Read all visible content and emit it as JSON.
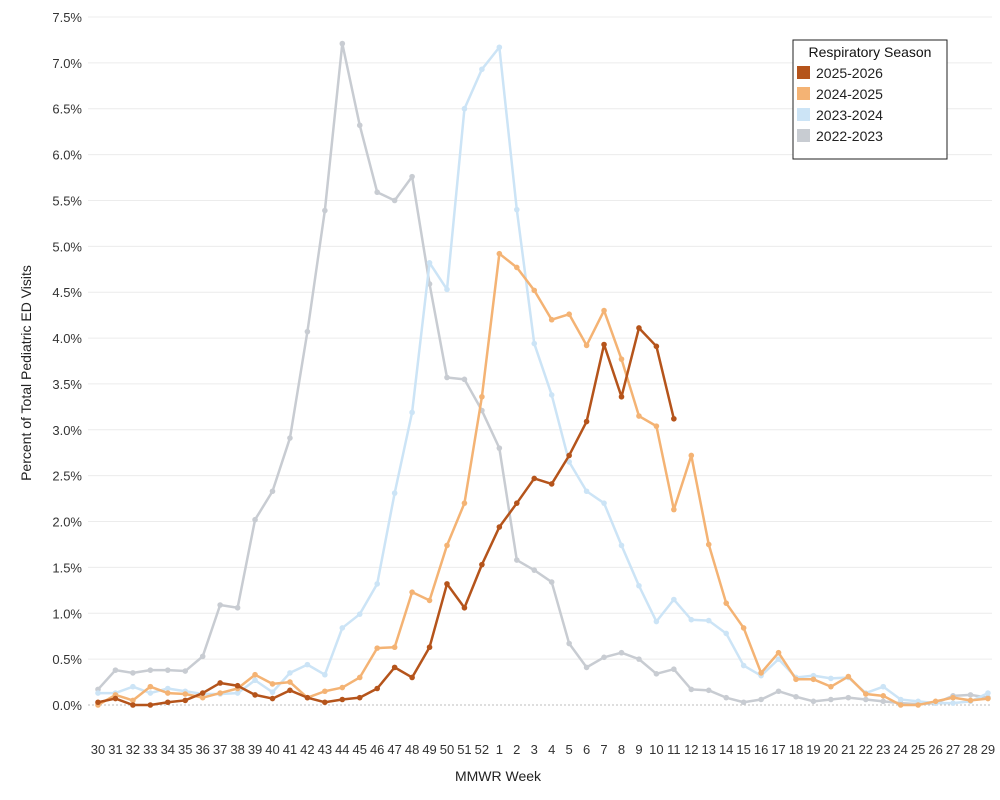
{
  "chart_data": {
    "type": "line",
    "title": "",
    "xlabel": "MMWR Week",
    "ylabel": "Percent of Total Pediatric ED Visits",
    "x": [
      "30",
      "31",
      "32",
      "33",
      "34",
      "35",
      "36",
      "37",
      "38",
      "39",
      "40",
      "41",
      "42",
      "43",
      "44",
      "45",
      "46",
      "47",
      "48",
      "49",
      "50",
      "51",
      "52",
      "1",
      "2",
      "3",
      "4",
      "5",
      "6",
      "7",
      "8",
      "9",
      "10",
      "11",
      "12",
      "13",
      "14",
      "15",
      "16",
      "17",
      "18",
      "19",
      "20",
      "21",
      "22",
      "23",
      "24",
      "25",
      "26",
      "27",
      "28",
      "29"
    ],
    "ylim": [
      0,
      7.5
    ],
    "yticks": [
      0,
      0.5,
      1.0,
      1.5,
      2.0,
      2.5,
      3.0,
      3.5,
      4.0,
      4.5,
      5.0,
      5.5,
      6.0,
      6.5,
      7.0,
      7.5
    ],
    "ytick_labels": [
      "0.0%",
      "0.5%",
      "1.0%",
      "1.5%",
      "2.0%",
      "2.5%",
      "3.0%",
      "3.5%",
      "4.0%",
      "4.5%",
      "5.0%",
      "5.5%",
      "6.0%",
      "6.5%",
      "7.0%",
      "7.5%"
    ],
    "grid": true,
    "legend": {
      "title": "Respiratory Season",
      "placement": "top-right"
    },
    "series": [
      {
        "name": "2025-2026",
        "color": "#b5541b",
        "values": [
          0.03,
          0.07,
          0.0,
          0.0,
          0.03,
          0.05,
          0.13,
          0.24,
          0.21,
          0.11,
          0.07,
          0.16,
          0.08,
          0.03,
          0.06,
          0.08,
          0.18,
          0.41,
          0.3,
          0.63,
          1.32,
          1.06,
          1.53,
          1.94,
          2.2,
          2.47,
          2.41,
          2.72,
          3.09,
          3.93,
          3.36,
          4.11,
          3.91,
          3.12,
          null,
          null,
          null,
          null,
          null,
          null,
          null,
          null,
          null,
          null,
          null,
          null,
          null,
          null,
          null,
          null,
          null,
          null
        ]
      },
      {
        "name": "2024-2025",
        "color": "#f4b374",
        "values": [
          0.0,
          0.11,
          0.05,
          0.2,
          0.13,
          0.12,
          0.08,
          0.13,
          0.18,
          0.33,
          0.23,
          0.25,
          0.08,
          0.15,
          0.19,
          0.3,
          0.62,
          0.63,
          1.23,
          1.14,
          1.74,
          2.2,
          3.36,
          4.92,
          4.77,
          4.52,
          4.2,
          4.26,
          3.92,
          4.3,
          3.77,
          3.15,
          3.04,
          2.13,
          2.72,
          1.75,
          1.11,
          0.84,
          0.35,
          0.57,
          0.28,
          0.28,
          0.2,
          0.31,
          0.12,
          0.1,
          0.0,
          0.0,
          0.04,
          0.08,
          0.05,
          0.07
        ]
      },
      {
        "name": "2023-2024",
        "color": "#cce4f6",
        "values": [
          0.13,
          0.13,
          0.2,
          0.13,
          0.18,
          0.15,
          0.12,
          0.12,
          0.13,
          0.27,
          0.14,
          0.35,
          0.44,
          0.33,
          0.84,
          0.99,
          1.32,
          2.31,
          3.19,
          4.82,
          4.53,
          6.5,
          6.93,
          7.17,
          5.4,
          3.94,
          3.38,
          2.65,
          2.33,
          2.2,
          1.74,
          1.3,
          0.91,
          1.15,
          0.93,
          0.92,
          0.78,
          0.43,
          0.32,
          0.5,
          0.3,
          0.32,
          0.29,
          0.3,
          0.13,
          0.2,
          0.06,
          0.04,
          0.02,
          0.02,
          0.04,
          0.13
        ]
      },
      {
        "name": "2022-2023",
        "color": "#c8ccd2",
        "values": [
          0.17,
          0.38,
          0.35,
          0.38,
          0.38,
          0.37,
          0.53,
          1.09,
          1.06,
          2.02,
          2.33,
          2.91,
          4.07,
          5.39,
          7.21,
          6.32,
          5.59,
          5.5,
          5.76,
          4.59,
          3.57,
          3.55,
          3.21,
          2.8,
          1.58,
          1.47,
          1.34,
          0.67,
          0.41,
          0.52,
          0.57,
          0.5,
          0.34,
          0.39,
          0.17,
          0.16,
          0.08,
          0.03,
          0.06,
          0.15,
          0.09,
          0.04,
          0.06,
          0.08,
          0.06,
          0.04,
          0.02,
          0.01,
          0.02,
          0.1,
          0.11,
          0.08
        ]
      }
    ]
  }
}
